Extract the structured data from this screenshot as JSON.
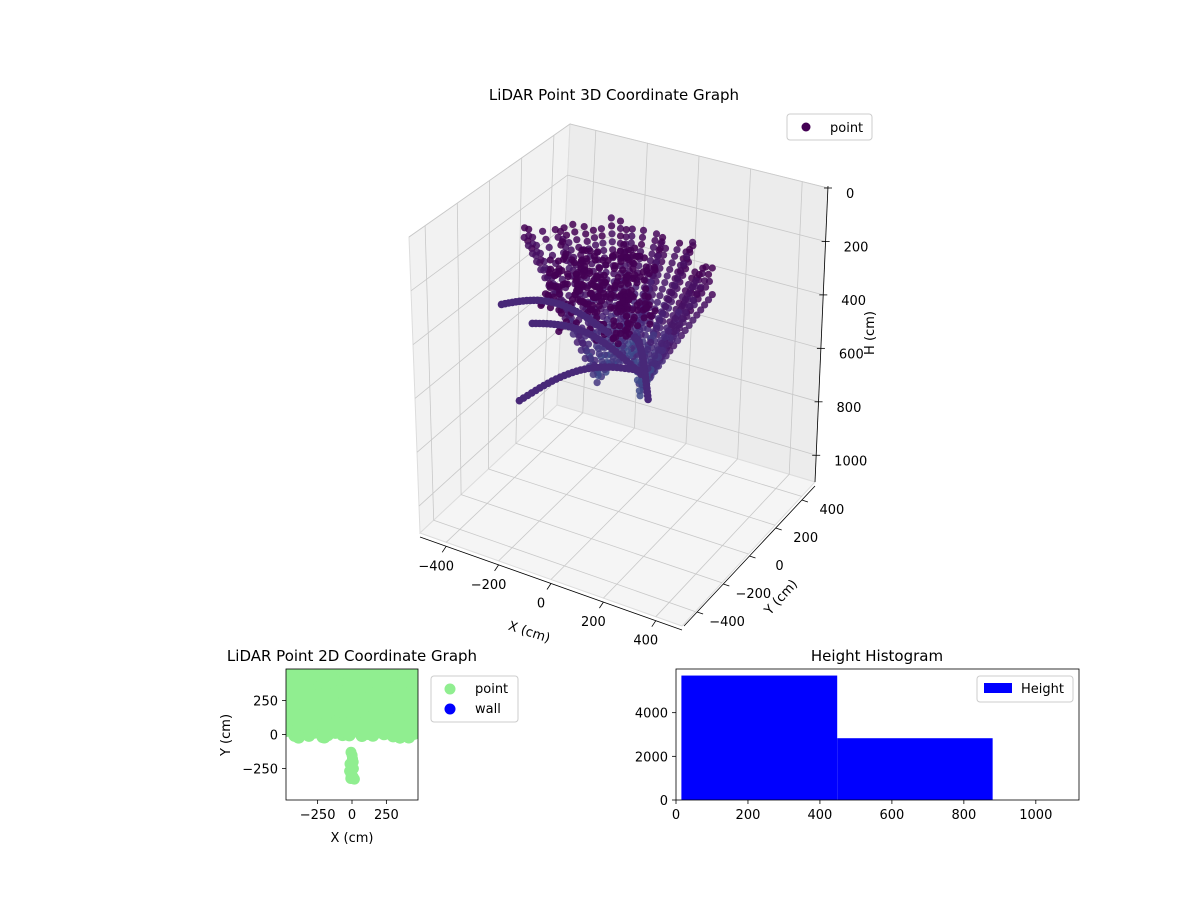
{
  "chart_data": [
    {
      "type": "scatter",
      "projection": "3d",
      "title": "LiDAR Point 3D Coordinate Graph",
      "xlabel": "X (cm)",
      "ylabel": "Y (cm)",
      "zlabel": "H (cm)",
      "xlim": [
        -500,
        500
      ],
      "ylim": [
        -500,
        500
      ],
      "zlim": [
        1100,
        0
      ],
      "xticks": [
        -400,
        -200,
        0,
        200,
        400
      ],
      "yticks": [
        -400,
        -200,
        0,
        200,
        400
      ],
      "zticks": [
        0,
        200,
        400,
        600,
        800,
        1000
      ],
      "zaxis_inverted": true,
      "grid": true,
      "legend": {
        "placement": "top-right",
        "entries": [
          "point"
        ]
      },
      "series": [
        {
          "name": "point",
          "color": "#440154",
          "description_values": "dense curved fan of radial point strands, H roughly 150 to 650 cm"
        }
      ]
    },
    {
      "type": "scatter",
      "title": "LiDAR Point 2D Coordinate Graph",
      "xlabel": "X (cm)",
      "ylabel": "Y (cm)",
      "xlim": [
        -480,
        480
      ],
      "ylim": [
        -480,
        480
      ],
      "xticks": [
        -250,
        0,
        250
      ],
      "yticks": [
        -250,
        0,
        250
      ],
      "legend": {
        "placement": "outside-right",
        "entries": [
          "point",
          "wall"
        ]
      },
      "series": [
        {
          "name": "point",
          "color": "#90ee90"
        },
        {
          "name": "wall",
          "color": "#0000ff",
          "values": []
        }
      ]
    },
    {
      "type": "bar",
      "histogram": true,
      "title": "Height Histogram",
      "xlim": [
        0,
        1120
      ],
      "ylim": [
        0,
        6000
      ],
      "xticks": [
        0,
        200,
        400,
        600,
        800,
        1000
      ],
      "yticks": [
        0,
        2000,
        4000
      ],
      "legend": {
        "placement": "top-right",
        "entries": [
          "Height"
        ]
      },
      "bins": [
        {
          "start": 15,
          "end": 448,
          "count": 5700
        },
        {
          "start": 448,
          "end": 880,
          "count": 2830
        }
      ],
      "series": [
        {
          "name": "Height",
          "color": "#0000ff"
        }
      ]
    }
  ]
}
